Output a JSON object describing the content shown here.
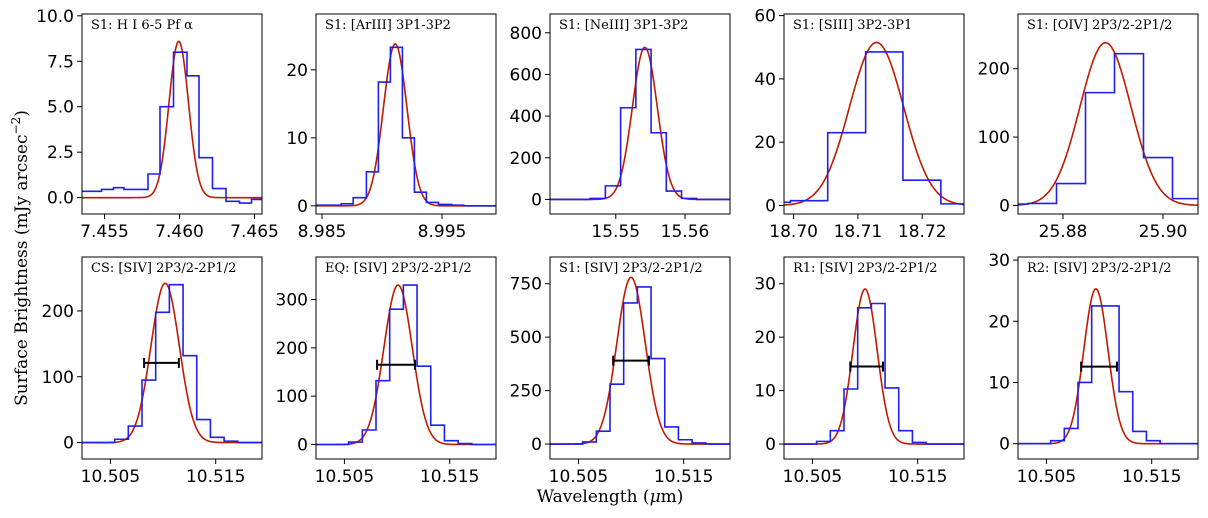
{
  "figure": {
    "ylabel": "Surface Brightness (mJy arcsec$^{-2}$)",
    "xlabel": "Wavelength ($\\mu$m)"
  },
  "colors": {
    "histogram": "#1f1fef",
    "fit": "#c01a00",
    "fwhm_bar": "#000000"
  },
  "chart_data": [
    {
      "type": "line",
      "title": "S1: H I  6-5 Pf α",
      "xlim": [
        7.4535,
        7.4655
      ],
      "ylim": [
        -0.9,
        10.1
      ],
      "xticks": [
        7.455,
        7.46,
        7.465
      ],
      "xtick_labels": [
        "7.455",
        "7.460",
        "7.465"
      ],
      "yticks": [
        0,
        2.5,
        5,
        7.5,
        10
      ],
      "ytick_labels": [
        "0.0",
        "2.5",
        "5.0",
        "7.5",
        "10.0"
      ],
      "histogram": {
        "edges": [
          7.4535,
          7.4548,
          7.4556,
          7.4563,
          7.4579,
          7.4587,
          7.4596,
          7.4605,
          7.4613,
          7.4622,
          7.4631,
          7.464,
          7.4648,
          7.4655
        ],
        "values": [
          0.35,
          0.45,
          0.55,
          0.45,
          1.3,
          5.0,
          8.0,
          6.7,
          2.2,
          0.5,
          -0.2,
          -0.3,
          -0.1
        ]
      },
      "fit": {
        "amplitude": 8.6,
        "center": 7.45995,
        "sigma": 0.00065,
        "baseline": 0.0
      }
    },
    {
      "type": "line",
      "title": "S1: [ArIII] 3P1-3P2",
      "xlim": [
        8.9845,
        8.9995
      ],
      "ylim": [
        -1.2,
        28.2
      ],
      "xticks": [
        8.985,
        8.995
      ],
      "xtick_labels": [
        "8.985",
        "8.995"
      ],
      "yticks": [
        0,
        10,
        20
      ],
      "ytick_labels": [
        "0",
        "10",
        "20"
      ],
      "histogram": {
        "edges": [
          8.9845,
          8.9866,
          8.9876,
          8.9887,
          8.9897,
          8.9907,
          8.9917,
          8.9927,
          8.9937,
          8.9947,
          8.9958,
          8.9968,
          8.9995
        ],
        "values": [
          0.1,
          0.3,
          1.2,
          5.0,
          18.2,
          23.3,
          10.0,
          2.0,
          0.5,
          0.2,
          0.1,
          0.0
        ]
      },
      "fit": {
        "amplitude": 23.8,
        "center": 8.9911,
        "sigma": 0.00098,
        "baseline": 0.0
      }
    },
    {
      "type": "line",
      "title": "S1: [NeIII] 3P1-3P2",
      "xlim": [
        15.5405,
        15.5665
      ],
      "ylim": [
        -70,
        890
      ],
      "xticks": [
        15.55,
        15.56
      ],
      "xtick_labels": [
        "15.55",
        "15.56"
      ],
      "yticks": [
        0,
        200,
        400,
        600,
        800
      ],
      "ytick_labels": [
        "0",
        "200",
        "400",
        "600",
        "800"
      ],
      "histogram": {
        "edges": [
          15.5405,
          15.5463,
          15.5485,
          15.5507,
          15.5529,
          15.5551,
          15.5573,
          15.5595,
          15.5617,
          15.5665
        ],
        "values": [
          0,
          5,
          65,
          440,
          720,
          320,
          40,
          5,
          0
        ]
      },
      "fit": {
        "amplitude": 730,
        "center": 15.5542,
        "sigma": 0.0018,
        "baseline": 0.0
      }
    },
    {
      "type": "line",
      "title": "S1: [SIII] 3P2-3P1",
      "xlim": [
        18.6985,
        18.7265
      ],
      "ylim": [
        -2.7,
        60.5
      ],
      "xticks": [
        18.7,
        18.71,
        18.72
      ],
      "xtick_labels": [
        "18.70",
        "18.71",
        "18.72"
      ],
      "yticks": [
        0,
        20,
        40,
        60
      ],
      "ytick_labels": [
        "0",
        "20",
        "40",
        "60"
      ],
      "histogram": {
        "edges": [
          18.6985,
          18.6995,
          18.7053,
          18.7112,
          18.717,
          18.7229,
          18.7265
        ],
        "values": [
          1.0,
          1.5,
          23.0,
          48.5,
          8.0,
          0.5
        ]
      },
      "fit": {
        "amplitude": 51.5,
        "center": 18.7129,
        "sigma": 0.0042,
        "baseline": 0.0
      }
    },
    {
      "type": "line",
      "title": "S1: [OIV] 2P3/2-2P1/2",
      "xlim": [
        25.871,
        25.907
      ],
      "ylim": [
        -12.5,
        280
      ],
      "xticks": [
        25.88,
        25.9
      ],
      "xtick_labels": [
        "25.88",
        "25.90"
      ],
      "yticks": [
        0,
        100,
        200
      ],
      "ytick_labels": [
        "0",
        "100",
        "200"
      ],
      "histogram": {
        "edges": [
          25.871,
          25.873,
          25.8787,
          25.8845,
          25.8903,
          25.8961,
          25.9019,
          25.907
        ],
        "values": [
          2,
          3,
          32,
          165,
          222,
          70,
          10
        ]
      },
      "fit": {
        "amplitude": 238,
        "center": 25.8885,
        "sigma": 0.0051,
        "baseline": 0.0
      }
    },
    {
      "type": "line",
      "title": "CS: [SIV] 2P3/2-2P1/2",
      "xlim": [
        10.5023,
        10.5194
      ],
      "ylim": [
        -25,
        282
      ],
      "xticks": [
        10.505,
        10.515
      ],
      "xtick_labels": [
        "10.505",
        "10.515"
      ],
      "yticks": [
        0,
        100,
        200
      ],
      "ytick_labels": [
        "0",
        "100",
        "200"
      ],
      "histogram": {
        "edges": [
          10.5023,
          10.5054,
          10.5067,
          10.508,
          10.5093,
          10.5106,
          10.5119,
          10.5132,
          10.5145,
          10.5158,
          10.5171,
          10.5194
        ],
        "values": [
          0,
          5,
          25,
          95,
          198,
          240,
          132,
          35,
          8,
          2,
          0
        ]
      },
      "fit": {
        "amplitude": 242,
        "center": 10.5102,
        "sigma": 0.00135,
        "baseline": 0.0
      },
      "fwhm_bar": {
        "x_start": 10.5082,
        "x_end": 10.5115,
        "y": 121
      }
    },
    {
      "type": "line",
      "title": "EQ: [SIV] 2P3/2-2P1/2",
      "xlim": [
        10.5023,
        10.5194
      ],
      "ylim": [
        -30,
        388
      ],
      "xticks": [
        10.505,
        10.515
      ],
      "xtick_labels": [
        "10.505",
        "10.515"
      ],
      "yticks": [
        0,
        100,
        200,
        300
      ],
      "ytick_labels": [
        "0",
        "100",
        "200",
        "300"
      ],
      "histogram": {
        "edges": [
          10.5023,
          10.5054,
          10.5067,
          10.508,
          10.5093,
          10.5106,
          10.5119,
          10.5132,
          10.5145,
          10.5158,
          10.5171,
          10.5194
        ],
        "values": [
          0,
          5,
          30,
          132,
          280,
          330,
          162,
          40,
          8,
          2,
          0
        ]
      },
      "fit": {
        "amplitude": 330,
        "center": 10.5101,
        "sigma": 0.00135,
        "baseline": 0.0
      },
      "fwhm_bar": {
        "x_start": 10.5081,
        "x_end": 10.5117,
        "y": 165
      }
    },
    {
      "type": "line",
      "title": "S1: [SIV] 2P3/2-2P1/2",
      "xlim": [
        10.5023,
        10.5194
      ],
      "ylim": [
        -70,
        875
      ],
      "xticks": [
        10.505,
        10.515
      ],
      "xtick_labels": [
        "10.505",
        "10.515"
      ],
      "yticks": [
        0,
        250,
        500,
        750
      ],
      "ytick_labels": [
        "0",
        "250",
        "500",
        "750"
      ],
      "histogram": {
        "edges": [
          10.5023,
          10.5054,
          10.5067,
          10.508,
          10.5093,
          10.5106,
          10.5119,
          10.5132,
          10.5145,
          10.5158,
          10.5171,
          10.5194
        ],
        "values": [
          0,
          10,
          60,
          280,
          660,
          735,
          400,
          80,
          20,
          5,
          0
        ]
      },
      "fit": {
        "amplitude": 780,
        "center": 10.51,
        "sigma": 0.00135,
        "baseline": 0.0
      },
      "fwhm_bar": {
        "x_start": 10.5083,
        "x_end": 10.5117,
        "y": 390
      }
    },
    {
      "type": "line",
      "title": "R1: [SIV] 2P3/2-2P1/2",
      "xlim": [
        10.5023,
        10.5194
      ],
      "ylim": [
        -2.8,
        35
      ],
      "xticks": [
        10.505,
        10.515
      ],
      "xtick_labels": [
        "10.505",
        "10.515"
      ],
      "yticks": [
        0,
        10,
        20,
        30
      ],
      "ytick_labels": [
        "0",
        "10",
        "20",
        "30"
      ],
      "histogram": {
        "edges": [
          10.5023,
          10.5054,
          10.5067,
          10.508,
          10.5093,
          10.5106,
          10.5119,
          10.5132,
          10.5145,
          10.5158,
          10.5171,
          10.5194
        ],
        "values": [
          0,
          0.5,
          2.5,
          10.3,
          25.5,
          26.3,
          10.5,
          2.5,
          0.3,
          0,
          0
        ]
      },
      "fit": {
        "amplitude": 29,
        "center": 10.51,
        "sigma": 0.00115,
        "baseline": 0.0
      },
      "fwhm_bar": {
        "x_start": 10.5086,
        "x_end": 10.5117,
        "y": 14.5
      }
    },
    {
      "type": "line",
      "title": "R2: [SIV] 2P3/2-2P1/2",
      "xlim": [
        10.5023,
        10.5194
      ],
      "ylim": [
        -2.5,
        30.5
      ],
      "xticks": [
        10.505,
        10.515
      ],
      "xtick_labels": [
        "10.505",
        "10.515"
      ],
      "yticks": [
        0,
        10,
        20,
        30
      ],
      "ytick_labels": [
        "0",
        "10",
        "20",
        "30"
      ],
      "histogram": {
        "edges": [
          10.5023,
          10.5054,
          10.5067,
          10.508,
          10.5093,
          10.5106,
          10.5119,
          10.5132,
          10.5145,
          10.5158,
          10.5171,
          10.5194
        ],
        "values": [
          0,
          0.5,
          2.5,
          10,
          22.5,
          22.5,
          8.5,
          2,
          0.5,
          0,
          0
        ]
      },
      "fit": {
        "amplitude": 25.3,
        "center": 10.5097,
        "sigma": 0.00115,
        "baseline": 0.0
      },
      "fwhm_bar": {
        "x_start": 10.5083,
        "x_end": 10.5117,
        "y": 12.6
      }
    }
  ]
}
